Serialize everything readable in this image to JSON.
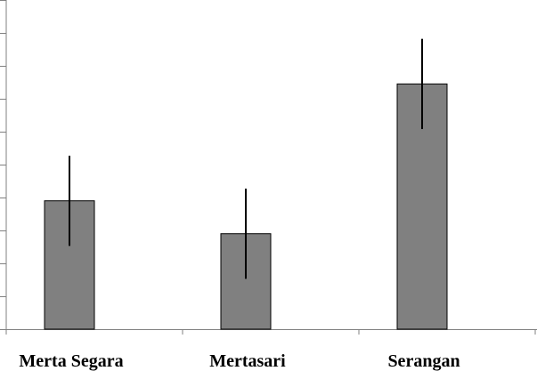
{
  "chart_data": {
    "type": "bar",
    "categories": [
      "Merta Segara",
      "Mertasari",
      "Serangan"
    ],
    "values": [
      3.9,
      2.9,
      7.45
    ],
    "errors": [
      1.37,
      1.37,
      1.37
    ],
    "title": "",
    "xlabel": "",
    "ylabel": "",
    "ylim": [
      0,
      10
    ],
    "y_tick_step": 1,
    "grid": false,
    "bar_color": "#808080",
    "error_bar_color": "#000000"
  }
}
